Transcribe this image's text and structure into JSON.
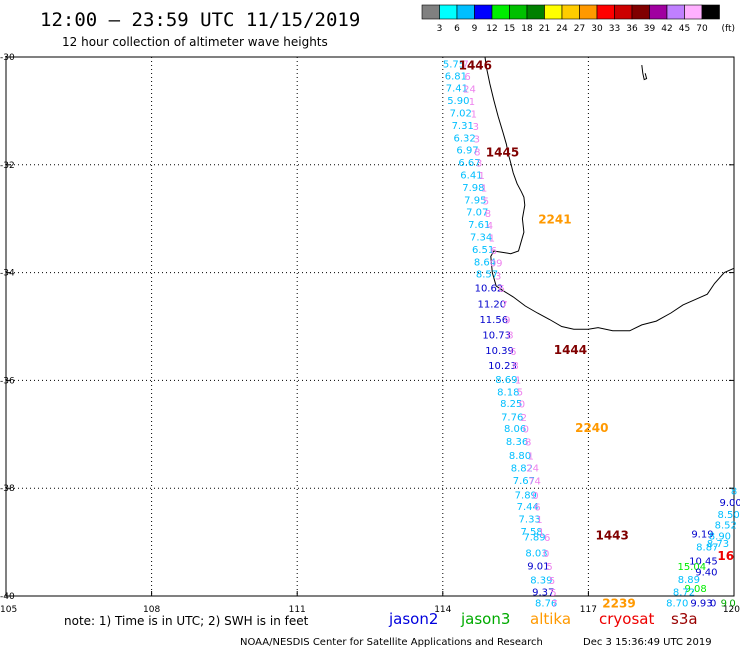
{
  "header": {
    "title": "12:00 — 23:59 UTC 11/15/2019",
    "subtitle": "12 hour collection of altimeter wave heights"
  },
  "colorbar": {
    "colors": [
      "#808080",
      "#00ffff",
      "#00bfff",
      "#0000ff",
      "#00ee00",
      "#00c000",
      "#008000",
      "#ffff00",
      "#ffcc00",
      "#ff9900",
      "#ff0000",
      "#cc0000",
      "#800000",
      "#a000a0",
      "#c080ff",
      "#ffb0ff",
      "#000000"
    ],
    "labels": [
      "3",
      "6",
      "9",
      "12",
      "15",
      "18",
      "21",
      "24",
      "27",
      "30",
      "33",
      "36",
      "39",
      "42",
      "45",
      "70"
    ],
    "unit": "(ft)"
  },
  "footer": {
    "note": "note: 1) Time is in UTC; 2) SWH is in feet",
    "satellites": [
      {
        "name": "jason2",
        "color": "#0000dd"
      },
      {
        "name": "jason3",
        "color": "#00aa00"
      },
      {
        "name": "altika",
        "color": "#ff9900"
      },
      {
        "name": "cryosat",
        "color": "#ee0000"
      },
      {
        "name": "s3a",
        "color": "#990000"
      }
    ],
    "credit": "NOAA/NESDIS Center for Satellite Applications and Research",
    "timestamp": "Dec  3 15:36:49 UTC 2019"
  },
  "chart_data": {
    "type": "scatter",
    "title": "12:00 — 23:59 UTC 11/15/2019",
    "subtitle": "12 hour collection of altimeter wave heights",
    "xlim": [
      105,
      120
    ],
    "ylim": [
      -40,
      -30
    ],
    "x_ticks": [
      105,
      108,
      111,
      114,
      117,
      120
    ],
    "x_tick_labels": [
      "105",
      "108",
      "111",
      "114",
      "117",
      "120"
    ],
    "y_ticks": [
      -30,
      -32,
      -34,
      -36,
      -38,
      -40
    ],
    "y_tick_labels": [
      "-30",
      "-32",
      "-34",
      "-36",
      "-38",
      "-40"
    ],
    "grid": true,
    "observations": [
      {
        "lon": 114.23,
        "lat": -30.12,
        "label": "5.75",
        "color": "#00bfff"
      },
      {
        "lon": 114.27,
        "lat": -30.34,
        "label": "6.81",
        "color": "#00bfff"
      },
      {
        "lon": 114.29,
        "lat": -30.57,
        "label": "7.41",
        "color": "#00bfff"
      },
      {
        "lon": 114.32,
        "lat": -30.8,
        "label": "5.90",
        "color": "#00bfff"
      },
      {
        "lon": 114.37,
        "lat": -31.03,
        "label": "7.02",
        "color": "#00bfff"
      },
      {
        "lon": 114.41,
        "lat": -31.26,
        "label": "7.31",
        "color": "#00bfff"
      },
      {
        "lon": 114.45,
        "lat": -31.49,
        "label": "6.32",
        "color": "#00bfff"
      },
      {
        "lon": 114.51,
        "lat": -31.72,
        "label": "6.97",
        "color": "#00bfff"
      },
      {
        "lon": 114.55,
        "lat": -31.95,
        "label": "6.67",
        "color": "#00bfff"
      },
      {
        "lon": 114.59,
        "lat": -32.18,
        "label": "6.41",
        "color": "#00bfff"
      },
      {
        "lon": 114.63,
        "lat": -32.41,
        "label": "7.98",
        "color": "#00bfff"
      },
      {
        "lon": 114.67,
        "lat": -32.64,
        "label": "7.95",
        "color": "#00bfff"
      },
      {
        "lon": 114.71,
        "lat": -32.87,
        "label": "7.07",
        "color": "#00bfff"
      },
      {
        "lon": 114.75,
        "lat": -33.1,
        "label": "7.61",
        "color": "#00bfff"
      },
      {
        "lon": 114.79,
        "lat": -33.33,
        "label": "7.34",
        "color": "#00bfff"
      },
      {
        "lon": 114.83,
        "lat": -33.56,
        "label": "6.51",
        "color": "#00bfff"
      },
      {
        "lon": 114.87,
        "lat": -33.79,
        "label": "8.64",
        "color": "#00bfff"
      },
      {
        "lon": 114.91,
        "lat": -34.02,
        "label": "8.57",
        "color": "#00bfff"
      },
      {
        "lon": 114.95,
        "lat": -34.28,
        "label": "10.62",
        "color": "#0000cc"
      },
      {
        "lon": 115.01,
        "lat": -34.57,
        "label": "11.20",
        "color": "#0000cc"
      },
      {
        "lon": 115.05,
        "lat": -34.86,
        "label": "11.56",
        "color": "#0000cc"
      },
      {
        "lon": 115.11,
        "lat": -35.15,
        "label": "10.73",
        "color": "#0000cc"
      },
      {
        "lon": 115.17,
        "lat": -35.44,
        "label": "10.39",
        "color": "#0000cc"
      },
      {
        "lon": 115.23,
        "lat": -35.71,
        "label": "10.23",
        "color": "#0000cc"
      },
      {
        "lon": 115.31,
        "lat": -35.97,
        "label": "8.69",
        "color": "#00bfff"
      },
      {
        "lon": 115.35,
        "lat": -36.21,
        "label": "8.18",
        "color": "#00bfff"
      },
      {
        "lon": 115.41,
        "lat": -36.42,
        "label": "8.25",
        "color": "#00bfff"
      },
      {
        "lon": 115.43,
        "lat": -36.67,
        "label": "7.76",
        "color": "#00bfff"
      },
      {
        "lon": 115.49,
        "lat": -36.88,
        "label": "8.06",
        "color": "#00bfff"
      },
      {
        "lon": 115.53,
        "lat": -37.12,
        "label": "8.36",
        "color": "#00bfff"
      },
      {
        "lon": 115.59,
        "lat": -37.38,
        "label": "8.80",
        "color": "#00bfff"
      },
      {
        "lon": 115.63,
        "lat": -37.62,
        "label": "8.82",
        "color": "#00bfff"
      },
      {
        "lon": 115.67,
        "lat": -37.85,
        "label": "7.67",
        "color": "#00bfff"
      },
      {
        "lon": 115.71,
        "lat": -38.12,
        "label": "7.89",
        "color": "#00bfff"
      },
      {
        "lon": 115.75,
        "lat": -38.33,
        "label": "7.44",
        "color": "#00bfff"
      },
      {
        "lon": 115.79,
        "lat": -38.56,
        "label": "7.33",
        "color": "#00bfff"
      },
      {
        "lon": 115.83,
        "lat": -38.79,
        "label": "7.58",
        "color": "#00bfff"
      },
      {
        "lon": 115.89,
        "lat": -38.9,
        "label": "7.89",
        "color": "#00bfff"
      },
      {
        "lon": 115.93,
        "lat": -39.19,
        "label": "8.03",
        "color": "#00bfff"
      },
      {
        "lon": 115.97,
        "lat": -39.43,
        "label": "9.01",
        "color": "#0000cc"
      },
      {
        "lon": 116.03,
        "lat": -39.69,
        "label": "8.39",
        "color": "#00bfff"
      },
      {
        "lon": 116.07,
        "lat": -39.92,
        "label": "9.37",
        "color": "#0000cc"
      },
      {
        "lon": 116.13,
        "lat": -40.12,
        "label": "8.76",
        "color": "#00bfff"
      },
      {
        "lon": 119.35,
        "lat": -38.84,
        "label": "9.19",
        "color": "#0000cc"
      },
      {
        "lon": 119.45,
        "lat": -39.08,
        "label": "8.87",
        "color": "#00bfff"
      },
      {
        "lon": 119.67,
        "lat": -39.02,
        "label": "8.73",
        "color": "#00bfff"
      },
      {
        "lon": 119.71,
        "lat": -38.88,
        "label": "8.90",
        "color": "#00bfff"
      },
      {
        "lon": 119.83,
        "lat": -38.67,
        "label": "8.52",
        "color": "#00bfff"
      },
      {
        "lon": 119.89,
        "lat": -38.48,
        "label": "8.50",
        "color": "#00bfff"
      },
      {
        "lon": 119.93,
        "lat": -38.26,
        "label": "9.00",
        "color": "#0000cc"
      },
      {
        "lon": 120.0,
        "lat": -38.04,
        "label": "8",
        "color": "#00bfff"
      },
      {
        "lon": 119.37,
        "lat": -39.34,
        "label": "10.45",
        "color": "#0000cc"
      },
      {
        "lon": 119.13,
        "lat": -39.44,
        "label": "15.04",
        "color": "#00ee00"
      },
      {
        "lon": 119.43,
        "lat": -39.55,
        "label": "9.40",
        "color": "#0000cc"
      },
      {
        "lon": 119.07,
        "lat": -39.68,
        "label": "8.89",
        "color": "#00bfff"
      },
      {
        "lon": 119.21,
        "lat": -39.85,
        "label": "9.08",
        "color": "#00ee00"
      },
      {
        "lon": 118.97,
        "lat": -39.92,
        "label": "8.72",
        "color": "#00bfff"
      },
      {
        "lon": 118.83,
        "lat": -40.12,
        "label": "8.70",
        "color": "#00bfff"
      },
      {
        "lon": 119.33,
        "lat": -40.12,
        "label": "9.93",
        "color": "#0000cc"
      },
      {
        "lon": 119.57,
        "lat": -40.12,
        "label": "0",
        "color": "#0000cc"
      },
      {
        "lon": 119.79,
        "lat": -40.12,
        "label": "9",
        "color": "#00aa00"
      },
      {
        "lon": 119.97,
        "lat": -40.12,
        "label": "0",
        "color": "#00aa00"
      },
      {
        "lon": 114.47,
        "lat": -30.12,
        "label": "7",
        "color": "#ee82ee"
      },
      {
        "lon": 114.51,
        "lat": -30.35,
        "label": "6",
        "color": "#ee82ee"
      },
      {
        "lon": 114.55,
        "lat": -30.58,
        "label": "24",
        "color": "#ee82ee"
      },
      {
        "lon": 114.6,
        "lat": -30.82,
        "label": "1",
        "color": "#ee82ee"
      },
      {
        "lon": 114.64,
        "lat": -31.05,
        "label": "1",
        "color": "#ee82ee"
      },
      {
        "lon": 114.68,
        "lat": -31.28,
        "label": "3",
        "color": "#ee82ee"
      },
      {
        "lon": 114.7,
        "lat": -31.51,
        "label": "3",
        "color": "#ee82ee"
      },
      {
        "lon": 114.71,
        "lat": -31.75,
        "label": "8",
        "color": "#ee82ee"
      },
      {
        "lon": 114.75,
        "lat": -31.96,
        "label": "3",
        "color": "#ee82ee"
      },
      {
        "lon": 114.8,
        "lat": -32.19,
        "label": "1",
        "color": "#ee82ee"
      },
      {
        "lon": 114.85,
        "lat": -32.42,
        "label": "1",
        "color": "#ee82ee"
      },
      {
        "lon": 114.89,
        "lat": -32.66,
        "label": "5",
        "color": "#ee82ee"
      },
      {
        "lon": 114.93,
        "lat": -32.89,
        "label": "8",
        "color": "#ee82ee"
      },
      {
        "lon": 114.97,
        "lat": -33.12,
        "label": "4",
        "color": "#ee82ee"
      },
      {
        "lon": 115.01,
        "lat": -33.35,
        "label": "1",
        "color": "#ee82ee"
      },
      {
        "lon": 115.05,
        "lat": -33.58,
        "label": "6",
        "color": "#ee82ee"
      },
      {
        "lon": 115.1,
        "lat": -33.81,
        "label": "09",
        "color": "#ee82ee"
      },
      {
        "lon": 115.14,
        "lat": -34.05,
        "label": "3",
        "color": "#ee82ee"
      },
      {
        "lon": 115.21,
        "lat": -34.29,
        "label": "6",
        "color": "#ee82ee"
      },
      {
        "lon": 115.27,
        "lat": -34.58,
        "label": "7",
        "color": "#ee82ee"
      },
      {
        "lon": 115.33,
        "lat": -34.87,
        "label": "9",
        "color": "#ee82ee"
      },
      {
        "lon": 115.39,
        "lat": -35.15,
        "label": "8",
        "color": "#ee82ee"
      },
      {
        "lon": 115.45,
        "lat": -35.45,
        "label": "6",
        "color": "#ee82ee"
      },
      {
        "lon": 115.5,
        "lat": -35.71,
        "label": "8",
        "color": "#ee82ee"
      },
      {
        "lon": 115.55,
        "lat": -35.98,
        "label": "1",
        "color": "#ee82ee"
      },
      {
        "lon": 115.59,
        "lat": -36.21,
        "label": "5",
        "color": "#ee82ee"
      },
      {
        "lon": 115.63,
        "lat": -36.43,
        "label": "0",
        "color": "#ee82ee"
      },
      {
        "lon": 115.67,
        "lat": -36.68,
        "label": "2",
        "color": "#ee82ee"
      },
      {
        "lon": 115.71,
        "lat": -36.89,
        "label": "0",
        "color": "#ee82ee"
      },
      {
        "lon": 115.76,
        "lat": -37.13,
        "label": "8",
        "color": "#ee82ee"
      },
      {
        "lon": 115.81,
        "lat": -37.39,
        "label": "1",
        "color": "#ee82ee"
      },
      {
        "lon": 115.85,
        "lat": -37.62,
        "label": "24",
        "color": "#ee82ee"
      },
      {
        "lon": 115.89,
        "lat": -37.86,
        "label": "74",
        "color": "#ee82ee"
      },
      {
        "lon": 115.91,
        "lat": -38.13,
        "label": "0",
        "color": "#ee82ee"
      },
      {
        "lon": 115.95,
        "lat": -38.34,
        "label": "6",
        "color": "#ee82ee"
      },
      {
        "lon": 115.99,
        "lat": -38.57,
        "label": "1",
        "color": "#ee82ee"
      },
      {
        "lon": 116.03,
        "lat": -38.8,
        "label": "1",
        "color": "#ee82ee"
      },
      {
        "lon": 116.15,
        "lat": -38.91,
        "label": "6",
        "color": "#ee82ee"
      },
      {
        "lon": 116.13,
        "lat": -39.2,
        "label": "0",
        "color": "#ee82ee"
      },
      {
        "lon": 116.2,
        "lat": -39.44,
        "label": "5",
        "color": "#ee82ee"
      },
      {
        "lon": 116.25,
        "lat": -39.7,
        "label": "5",
        "color": "#ee82ee"
      },
      {
        "lon": 116.28,
        "lat": -39.93,
        "label": "5",
        "color": "#ee82ee"
      },
      {
        "lon": 116.3,
        "lat": -40.13,
        "label": "7",
        "color": "#ee82ee"
      }
    ],
    "pass_labels": [
      {
        "lon": 114.67,
        "lat": -30.14,
        "label": "1446",
        "color": "#800000"
      },
      {
        "lon": 115.23,
        "lat": -31.75,
        "label": "1445",
        "color": "#800000"
      },
      {
        "lon": 116.31,
        "lat": -33.0,
        "label": "2241",
        "color": "#ff9900"
      },
      {
        "lon": 116.63,
        "lat": -35.42,
        "label": "1444",
        "color": "#800000"
      },
      {
        "lon": 117.07,
        "lat": -36.86,
        "label": "2240",
        "color": "#ff9900"
      },
      {
        "lon": 117.49,
        "lat": -38.86,
        "label": "1443",
        "color": "#800000"
      },
      {
        "lon": 117.63,
        "lat": -40.12,
        "label": "2239",
        "color": "#ff9900"
      },
      {
        "lon": 119.83,
        "lat": -39.24,
        "label": "16",
        "color": "#ee0000"
      }
    ],
    "coastline": [
      [
        [
          114.87,
          -30.0
        ],
        [
          114.9,
          -30.2
        ],
        [
          114.97,
          -30.5
        ],
        [
          115.05,
          -30.8
        ],
        [
          115.14,
          -31.1
        ],
        [
          115.24,
          -31.4
        ],
        [
          115.31,
          -31.62
        ],
        [
          115.35,
          -31.8
        ],
        [
          115.41,
          -32.0
        ],
        [
          115.45,
          -32.15
        ],
        [
          115.53,
          -32.35
        ],
        [
          115.62,
          -32.5
        ],
        [
          115.67,
          -32.6
        ],
        [
          115.69,
          -32.75
        ],
        [
          115.64,
          -33.0
        ],
        [
          115.67,
          -33.25
        ],
        [
          115.56,
          -33.6
        ],
        [
          115.4,
          -33.65
        ],
        [
          115.2,
          -33.62
        ],
        [
          115.05,
          -33.6
        ],
        [
          114.99,
          -33.7
        ],
        [
          115.02,
          -34.0
        ],
        [
          115.1,
          -34.25
        ],
        [
          115.25,
          -34.34
        ],
        [
          115.45,
          -34.45
        ],
        [
          115.7,
          -34.62
        ],
        [
          115.95,
          -34.75
        ],
        [
          116.2,
          -34.87
        ],
        [
          116.45,
          -35.0
        ],
        [
          116.7,
          -35.05
        ],
        [
          117.0,
          -35.05
        ],
        [
          117.2,
          -35.02
        ],
        [
          117.5,
          -35.08
        ],
        [
          117.85,
          -35.08
        ],
        [
          118.1,
          -34.97
        ],
        [
          118.4,
          -34.9
        ],
        [
          118.7,
          -34.75
        ],
        [
          118.95,
          -34.6
        ],
        [
          119.2,
          -34.5
        ],
        [
          119.45,
          -34.4
        ],
        [
          119.6,
          -34.2
        ],
        [
          119.8,
          -34.0
        ],
        [
          120.0,
          -33.92
        ]
      ],
      [
        [
          118.1,
          -30.15
        ],
        [
          118.12,
          -30.3
        ],
        [
          118.15,
          -30.42
        ],
        [
          118.2,
          -30.4
        ],
        [
          118.17,
          -30.3
        ]
      ]
    ]
  }
}
